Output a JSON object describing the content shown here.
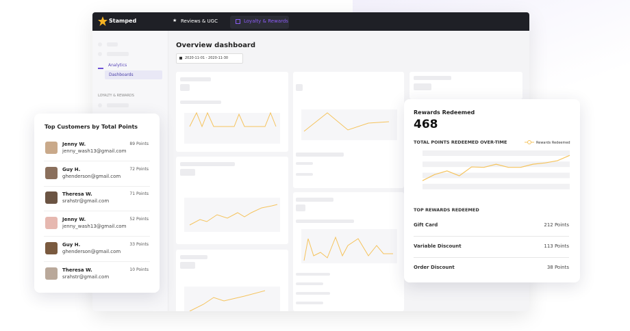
{
  "nav": {
    "brand": "Stamped",
    "tabs": [
      "Reviews & UGC",
      "Loyalty & Rewards"
    ]
  },
  "sidebar": {
    "items": [
      "Analytics",
      "Dashboards"
    ],
    "section": "LOYALTY & REWARDS"
  },
  "main": {
    "title": "Overview dashboard",
    "date_range": "2020-11-01 - 2020-11-30"
  },
  "customers": {
    "title": "Top Customers by Total Points",
    "rows": [
      {
        "name": "Jenny W.",
        "email": "jenny_wash13@gmail.com",
        "points": "89 Points"
      },
      {
        "name": "Guy H.",
        "email": "ghenderson@gmail.com",
        "points": "72 Points"
      },
      {
        "name": "Theresa W.",
        "email": "srahstr@gmail.com",
        "points": "71 Points"
      },
      {
        "name": "Jenny W.",
        "email": "jenny_wash13@gmail.com",
        "points": "52 Points"
      },
      {
        "name": "Guy H.",
        "email": "ghenderson@gmail.com",
        "points": "33 Points"
      },
      {
        "name": "Theresa W.",
        "email": "srahstr@gmail.com",
        "points": "10 Points"
      }
    ]
  },
  "rewards": {
    "title": "Rewards Redeemed",
    "total": "468",
    "chart": {
      "type": "line",
      "title": "TOTAL POINTS REDEEMED OVER-TIME",
      "ylim": [
        0,
        100
      ],
      "series": [
        {
          "name": "Rewards Redeemed",
          "color": "#f5c35c",
          "values": [
            32,
            46,
            54,
            43,
            63,
            62,
            69,
            62,
            62,
            69,
            72,
            77,
            89
          ]
        }
      ]
    },
    "top_title": "TOP REWARDS REDEEMED",
    "top": [
      {
        "name": "Gift Card",
        "points": "212 Points"
      },
      {
        "name": "Variable Discount",
        "points": "113 Points"
      },
      {
        "name": "Order Discount",
        "points": "38 Points"
      }
    ]
  }
}
